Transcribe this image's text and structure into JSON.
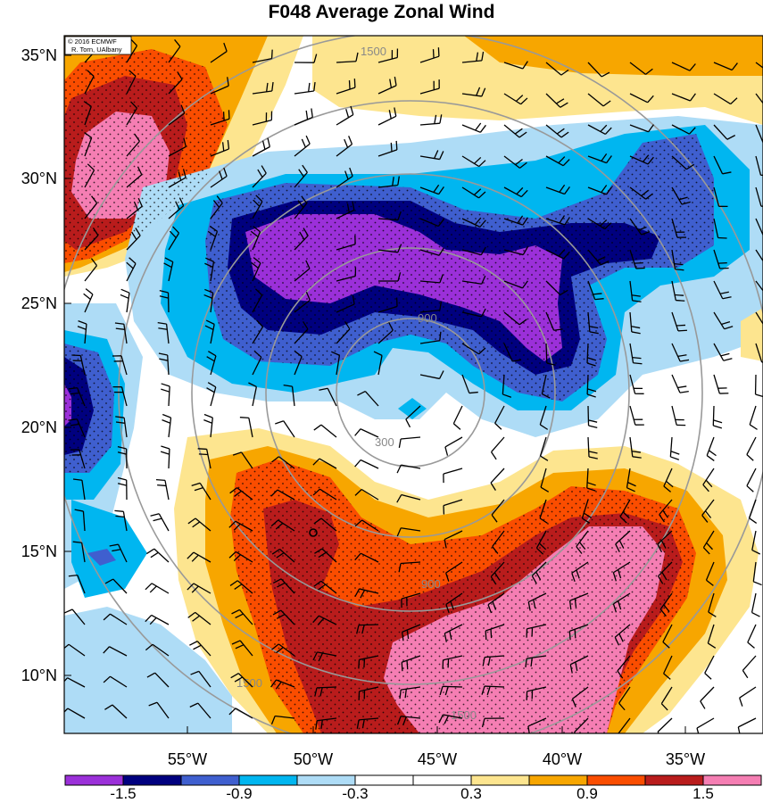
{
  "title": "F048 Average Zonal Wind",
  "credit": [
    "© 2016 ECMWF",
    "R. Torn, UAlbany"
  ],
  "lat_labels": [
    "35°N",
    "30°N",
    "25°N",
    "20°N",
    "15°N",
    "10°N"
  ],
  "lon_labels": [
    "55°W",
    "50°W",
    "45°W",
    "40°W",
    "35°W"
  ],
  "colorbar": {
    "colors": [
      "#9b30d9",
      "#00007f",
      "#3f5fcf",
      "#00b6f0",
      "#aedcf6",
      "#ffffff",
      "#ffffff",
      "#fde58f",
      "#f7a600",
      "#fa4d00",
      "#b91c1c",
      "#f57eb3"
    ],
    "labels": [
      "-1.5",
      "-0.9",
      "-0.3",
      "0.3",
      "0.9",
      "1.5"
    ]
  },
  "ring_labels": [
    "300",
    "900",
    "1500"
  ],
  "map": {
    "lat_range": [
      8,
      36
    ],
    "lon_range": [
      -59,
      -31.5
    ],
    "fill_colors": {
      "purple": "#9b30d9",
      "navy": "#00007f",
      "blue": "#3f5fcf",
      "cyan": "#00b6f0",
      "lightblue": "#aedcf6",
      "yellow": "#fde58f",
      "orange": "#f7a600",
      "redorange": "#fa4d00",
      "darkred": "#b91c1c",
      "pink": "#f57eb3"
    }
  }
}
